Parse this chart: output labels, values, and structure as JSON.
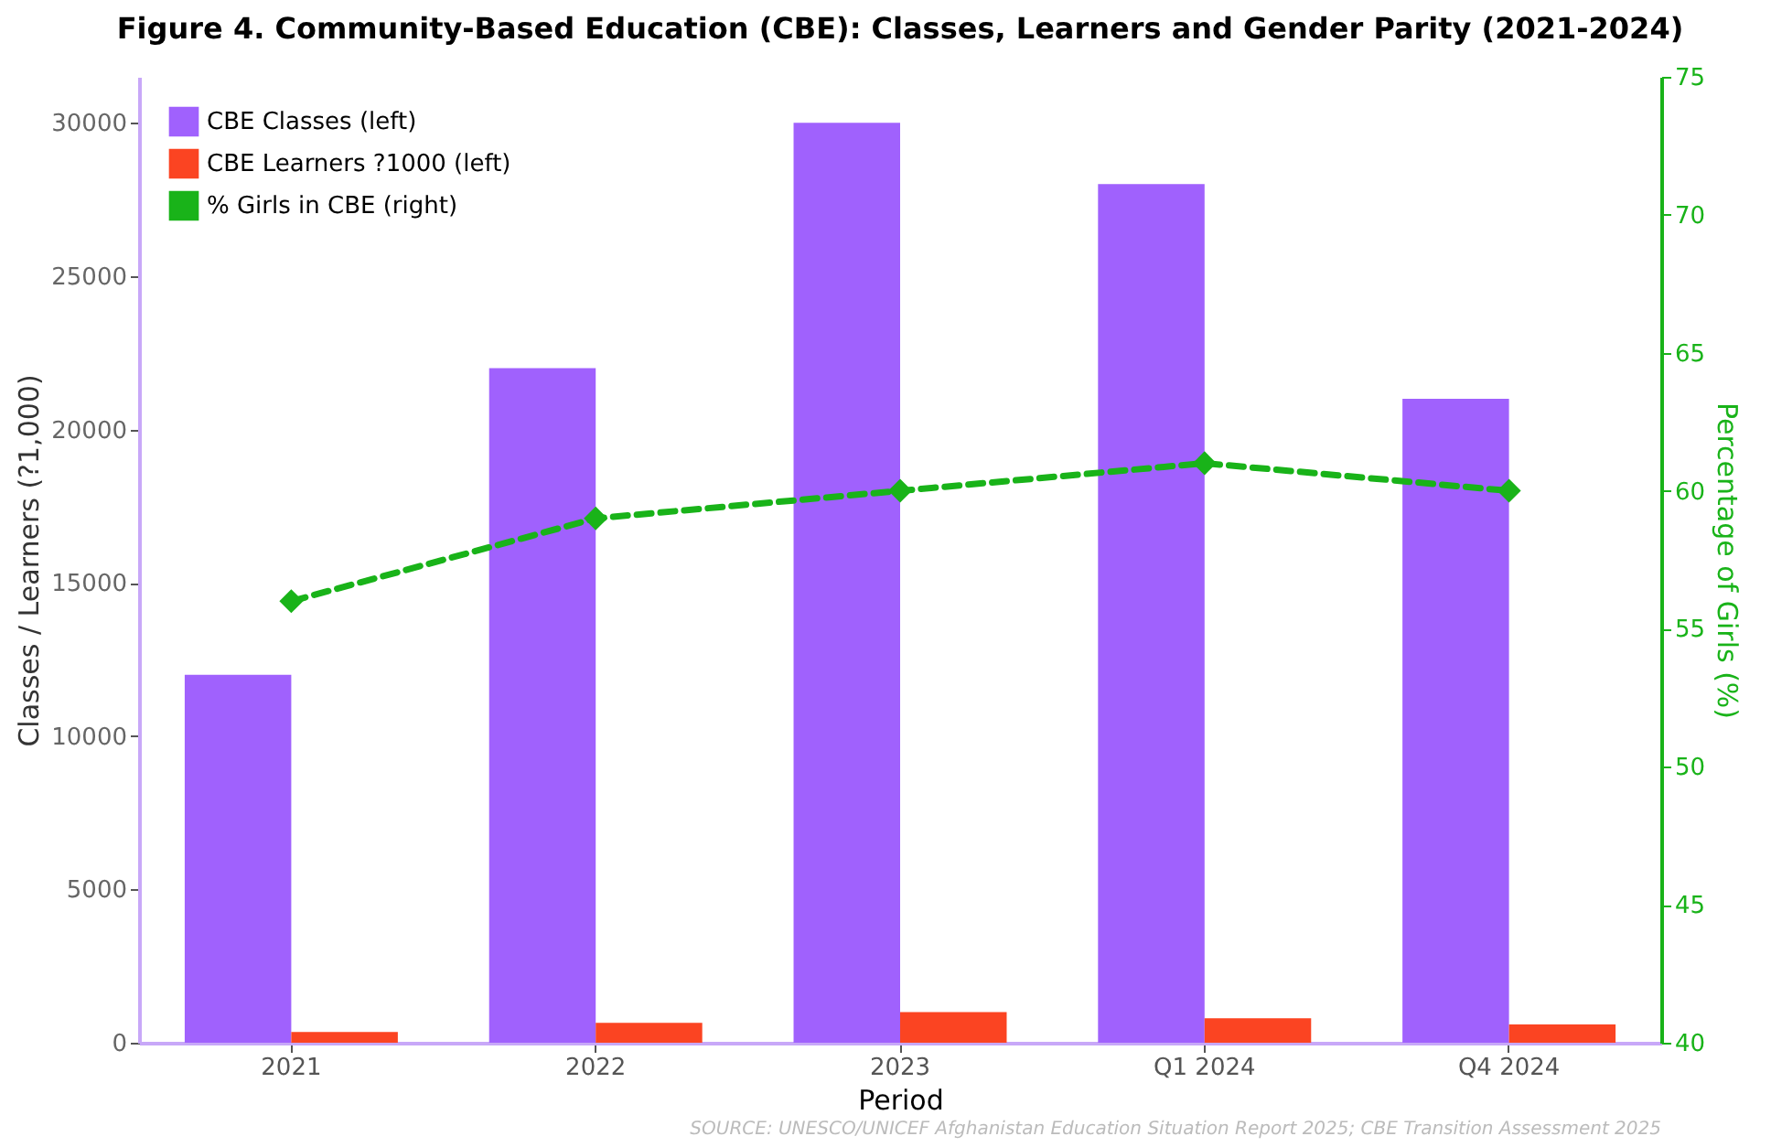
{
  "chart_data": {
    "type": "bar",
    "title": "Figure 4.  Community-Based Education (CBE): Classes, Learners and Gender Parity (2021-2024)",
    "xlabel": "Period",
    "ylabel": "Classes / Learners (?1,000)",
    "y2label": "Percentage of Girls (%)",
    "categories": [
      "2021",
      "2022",
      "2023",
      "Q1 2024",
      "Q4 2024"
    ],
    "series": [
      {
        "name": "CBE Classes (left)",
        "color": "#a061fd",
        "values": [
          12000,
          22000,
          30000,
          28000,
          21000
        ]
      },
      {
        "name": "CBE Learners ?1000 (left)",
        "color": "#fb4422",
        "values": [
          350,
          650,
          1000,
          800,
          600
        ]
      },
      {
        "name": "% Girls in CBE (right)",
        "type": "line",
        "axis": "y2",
        "color": "#19b319",
        "marker": "diamond",
        "line_style": "dashed",
        "values": [
          56,
          59,
          60,
          61,
          60
        ]
      }
    ],
    "ylim": [
      0,
      31500
    ],
    "yticks": [
      0,
      5000,
      10000,
      15000,
      20000,
      25000,
      30000
    ],
    "y2lim": [
      40,
      75
    ],
    "y2ticks": [
      40,
      45,
      50,
      55,
      60,
      65,
      70,
      75
    ],
    "legend": "top left",
    "grid": false,
    "annotations": [
      "SOURCE: UNESCO/UNICEF Afghanistan Education Situation Report 2025; CBE Transition Assessment 2025"
    ]
  }
}
